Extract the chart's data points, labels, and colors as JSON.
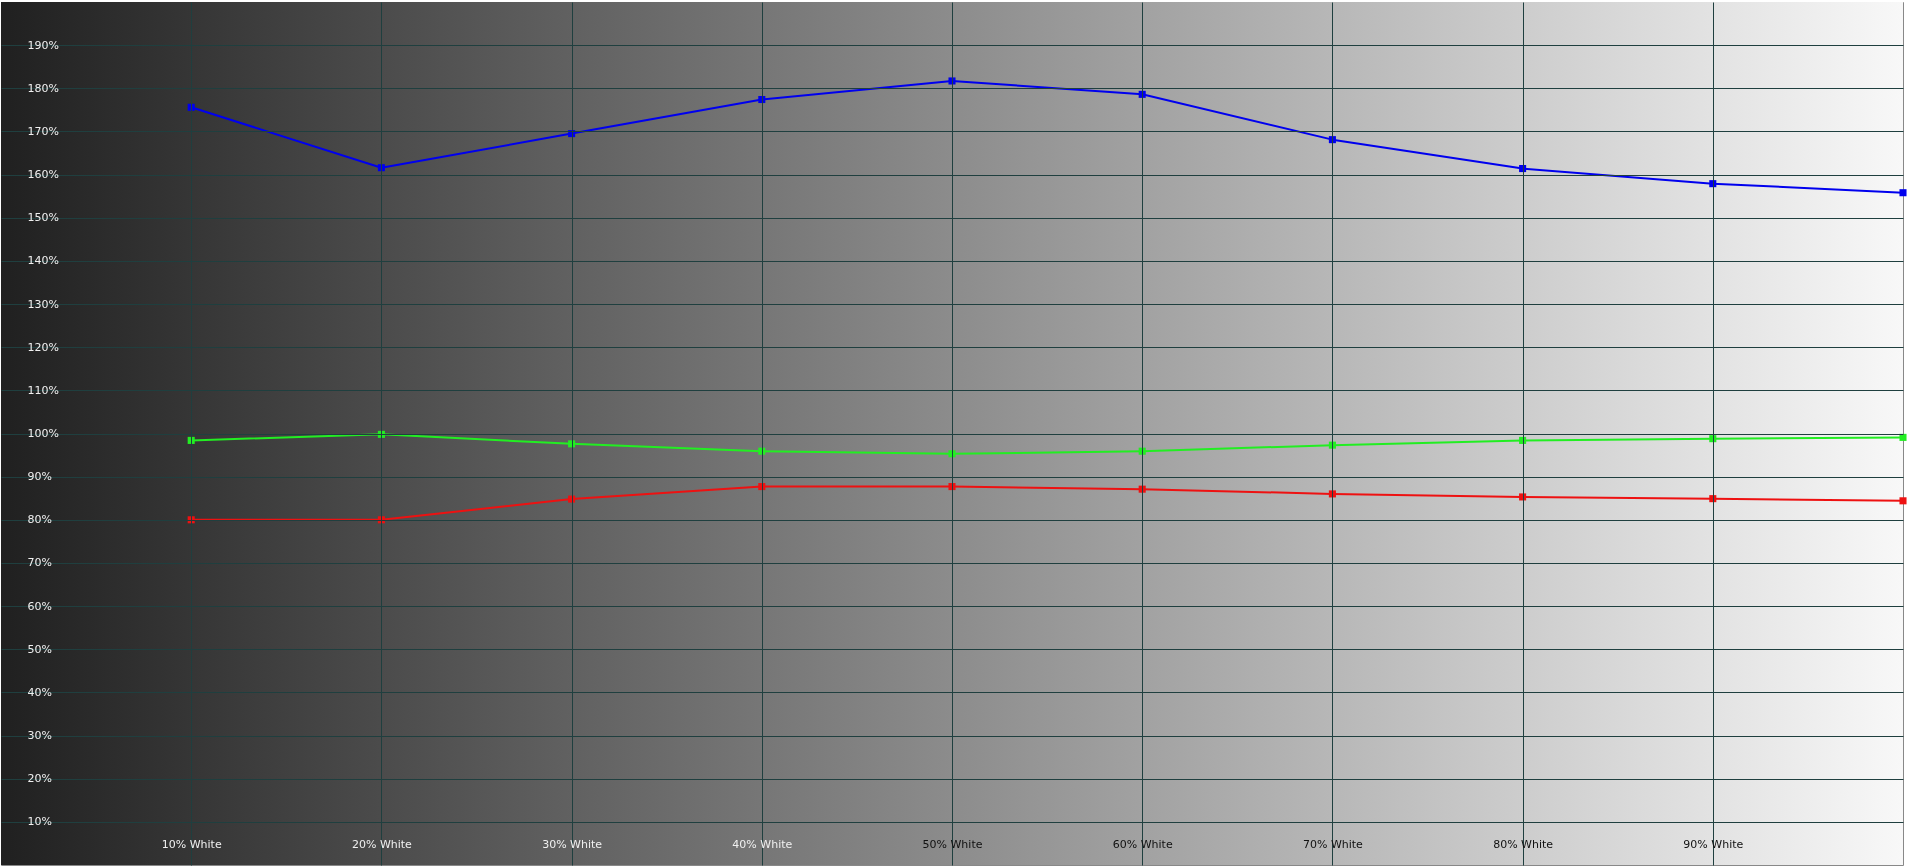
{
  "chart_data": {
    "type": "line",
    "x": [
      10,
      20,
      30,
      40,
      50,
      60,
      70,
      80,
      90,
      100
    ],
    "series": [
      {
        "color": "#0000ee",
        "values": [
          175.6,
          161.6,
          169.5,
          177.4,
          181.7,
          178.6,
          168.1,
          161.4,
          157.9,
          155.8
        ]
      },
      {
        "color": "#22ee22",
        "values": [
          98.4,
          99.8,
          97.6,
          95.9,
          95.3,
          95.9,
          97.3,
          98.4,
          98.8,
          99.1
        ]
      },
      {
        "color": "#ee1111",
        "values": [
          80,
          80,
          84.8,
          87.7,
          87.7,
          87.1,
          86,
          85.3,
          84.9,
          84.4
        ]
      }
    ],
    "xlim": [
      0,
      100
    ],
    "ylim": [
      0,
      200
    ],
    "xticks": [
      {
        "value": 10,
        "label": "10% White"
      },
      {
        "value": 20,
        "label": "20% White"
      },
      {
        "value": 30,
        "label": "30% White"
      },
      {
        "value": 40,
        "label": "40% White"
      },
      {
        "value": 50,
        "label": "50% White"
      },
      {
        "value": 60,
        "label": "60% White"
      },
      {
        "value": 70,
        "label": "70% White"
      },
      {
        "value": 80,
        "label": "80% White"
      },
      {
        "value": 90,
        "label": "90% White"
      }
    ],
    "yticks": [
      {
        "value": 10,
        "label": "10%"
      },
      {
        "value": 20,
        "label": "20%"
      },
      {
        "value": 30,
        "label": "30%"
      },
      {
        "value": 40,
        "label": "40%"
      },
      {
        "value": 50,
        "label": "50%"
      },
      {
        "value": 60,
        "label": "60%"
      },
      {
        "value": 70,
        "label": "70%"
      },
      {
        "value": 80,
        "label": "80%"
      },
      {
        "value": 90,
        "label": "90%"
      },
      {
        "value": 100,
        "label": "100%"
      },
      {
        "value": 110,
        "label": "110%"
      },
      {
        "value": 120,
        "label": "120%"
      },
      {
        "value": 130,
        "label": "130%"
      },
      {
        "value": 140,
        "label": "140%"
      },
      {
        "value": 150,
        "label": "150%"
      },
      {
        "value": 160,
        "label": "160%"
      },
      {
        "value": 170,
        "label": "170%"
      },
      {
        "value": 180,
        "label": "180%"
      },
      {
        "value": 190,
        "label": "190%"
      }
    ],
    "grid": true,
    "marker": "square",
    "line_style": "solid"
  }
}
